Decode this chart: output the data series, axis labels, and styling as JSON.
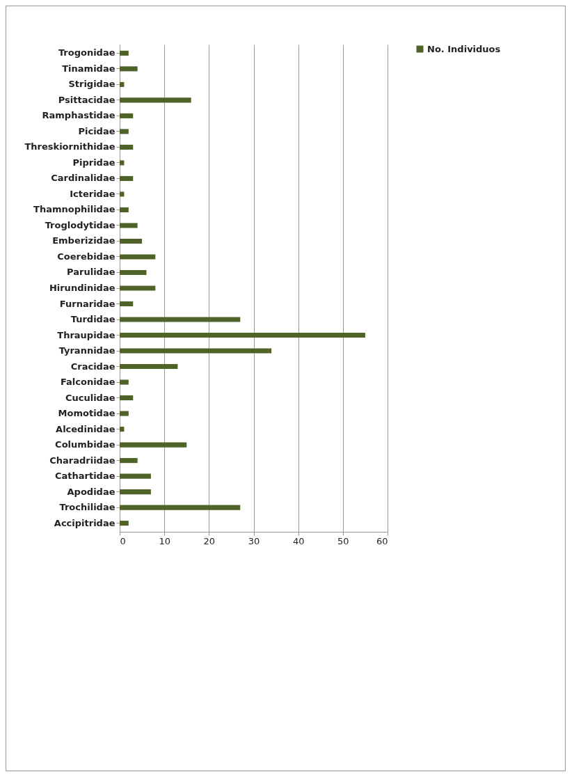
{
  "chart_data": {
    "type": "bar",
    "orientation": "horizontal",
    "categories": [
      "Trogonidae",
      "Tinamidae",
      "Strigidae",
      "Psittacidae",
      "Ramphastidae",
      "Picidae",
      "Threskiornithidae",
      "Pipridae",
      "Cardinalidae",
      "Icteridae",
      "Thamnophilidae",
      "Troglodytidae",
      "Emberizidae",
      "Coerebidae",
      "Parulidae",
      "Hirundinidae",
      "Furnaridae",
      "Turdidae",
      "Thraupidae",
      "Tyrannidae",
      "Cracidae",
      "Falconidae",
      "Cuculidae",
      "Momotidae",
      "Alcedinidae",
      "Columbidae",
      "Charadriidae",
      "Cathartidae",
      "Apodidae",
      "Trochilidae",
      "Accipitridae"
    ],
    "series": [
      {
        "name": "No. Individuos",
        "color": "#4f6228",
        "values": [
          2,
          4,
          1,
          16,
          3,
          2,
          3,
          1,
          3,
          1,
          2,
          4,
          5,
          8,
          6,
          8,
          3,
          27,
          55,
          34,
          13,
          2,
          3,
          2,
          1,
          15,
          4,
          7,
          7,
          27,
          2
        ]
      }
    ],
    "xlim": [
      0,
      60
    ],
    "xticks": [
      0,
      10,
      20,
      30,
      40,
      50,
      60
    ],
    "grid": "x",
    "legend": "right"
  }
}
